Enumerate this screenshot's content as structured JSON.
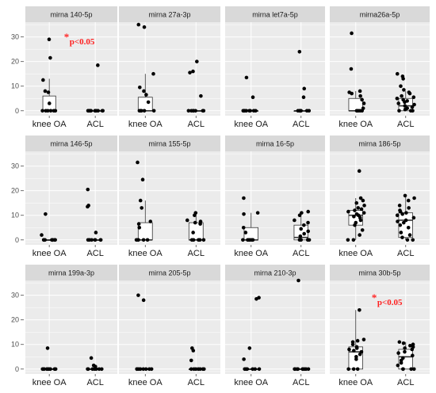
{
  "chart_data": {
    "type": "boxplot-jitter faceted",
    "groups": [
      "knee OA",
      "ACL"
    ],
    "colors": {
      "panel_bg": "#ebebeb",
      "strip_bg": "#d9d9d9",
      "grid": "#ffffff",
      "point": "#000000",
      "annotation": "#ff1f1f"
    },
    "rows": [
      {
        "ylim": [
          -2,
          36
        ],
        "yticks": [
          "0",
          "10",
          "20",
          "30"
        ]
      },
      {
        "ylim": [
          -2,
          36
        ],
        "yticks": [
          "0",
          "10",
          "20",
          "30"
        ]
      },
      {
        "ylim": [
          -2,
          36
        ],
        "yticks": [
          "0",
          "10",
          "20",
          "30"
        ]
      }
    ],
    "panels": [
      {
        "title": "mirna 140-5p",
        "row": 0,
        "col": 0,
        "box": [
          {
            "q1": 0,
            "med": 0,
            "q3": 6,
            "lo": 0,
            "hi": 13
          },
          {
            "q1": 0,
            "med": 0,
            "q3": 0,
            "lo": 0,
            "hi": 0
          }
        ],
        "points": [
          [
            29,
            21.5,
            12.5,
            8,
            7.5,
            3,
            0,
            0,
            0,
            0,
            0,
            0
          ],
          [
            18.5,
            0,
            0,
            0,
            0,
            0,
            0,
            0,
            0,
            0,
            0,
            0
          ]
        ],
        "annotation": "p<0.05",
        "annotation_star": "*",
        "annotation_y": 28
      },
      {
        "title": "mirna 27a-3p",
        "row": 0,
        "col": 1,
        "box": [
          {
            "q1": 0,
            "med": 0,
            "q3": 5.5,
            "lo": 0,
            "hi": 15
          },
          {
            "q1": 0,
            "med": 0,
            "q3": 0,
            "lo": 0,
            "hi": 0
          }
        ],
        "points": [
          [
            35,
            34,
            15,
            9.5,
            8,
            6.5,
            3.5,
            0,
            0,
            0,
            0,
            0
          ],
          [
            20,
            16,
            15.5,
            6,
            0,
            0,
            0,
            0,
            0,
            0,
            0
          ]
        ]
      },
      {
        "title": "mirna let7a-5p",
        "row": 0,
        "col": 2,
        "box": [
          {
            "q1": 0,
            "med": 0,
            "q3": 0,
            "lo": 0,
            "hi": 0
          },
          {
            "q1": 0,
            "med": 0,
            "q3": 0,
            "lo": 0,
            "hi": 0
          }
        ],
        "points": [
          [
            13.5,
            5.5,
            0,
            0,
            0,
            0,
            0,
            0,
            0,
            0
          ],
          [
            24,
            9,
            5.5,
            0,
            0,
            0,
            0,
            0,
            0,
            0,
            0
          ]
        ]
      },
      {
        "title": "mirna26a-5p",
        "row": 0,
        "col": 3,
        "box": [
          {
            "q1": 0,
            "med": 0,
            "q3": 5,
            "lo": 0,
            "hi": 8
          },
          {
            "q1": 0,
            "med": 2,
            "q3": 5,
            "lo": 0,
            "hi": 8
          }
        ],
        "points": [
          [
            31.5,
            17,
            8,
            7.5,
            7,
            6,
            4.5,
            3,
            1,
            0,
            0,
            0,
            0
          ],
          [
            15,
            14,
            13,
            10,
            8.5,
            7.5,
            7,
            6,
            5.5,
            5,
            4.5,
            4,
            3.5,
            3,
            2.5,
            2,
            1.5,
            1,
            0.5,
            0,
            0,
            0
          ]
        ]
      },
      {
        "title": "mirna 146-5p",
        "row": 1,
        "col": 0,
        "box": [
          {
            "q1": 0,
            "med": 0,
            "q3": 0,
            "lo": 0,
            "hi": 0
          },
          {
            "q1": 0,
            "med": 0,
            "q3": 0,
            "lo": 0,
            "hi": 0
          }
        ],
        "points": [
          [
            10.5,
            2,
            0,
            0,
            0,
            0,
            0,
            0,
            0,
            0
          ],
          [
            20.5,
            14,
            13.5,
            3,
            0,
            0,
            0,
            0,
            0,
            0,
            0
          ]
        ]
      },
      {
        "title": "mirna 155-5p",
        "row": 1,
        "col": 1,
        "box": [
          {
            "q1": 0,
            "med": 0,
            "q3": 7,
            "lo": 0,
            "hi": 16
          },
          {
            "q1": 0,
            "med": 0,
            "q3": 7,
            "lo": 0,
            "hi": 11
          }
        ],
        "points": [
          [
            31.5,
            24.5,
            16,
            13,
            7.5,
            6.5,
            5,
            0,
            0,
            0,
            0,
            0
          ],
          [
            11,
            10,
            8,
            7.5,
            7,
            6.5,
            3,
            0,
            0,
            0,
            0,
            0
          ]
        ]
      },
      {
        "title": "mirna 16-5p",
        "row": 1,
        "col": 2,
        "box": [
          {
            "q1": 0,
            "med": 0,
            "q3": 5,
            "lo": 0,
            "hi": 11
          },
          {
            "q1": 0,
            "med": 1,
            "q3": 6,
            "lo": 0,
            "hi": 11
          }
        ],
        "points": [
          [
            17,
            11,
            10.5,
            5,
            3,
            0,
            0,
            0,
            0,
            0,
            0
          ],
          [
            11.5,
            11,
            10,
            8,
            7,
            6,
            4.5,
            3.5,
            2.5,
            1.5,
            0,
            0,
            0,
            0
          ]
        ]
      },
      {
        "title": "mirna 186-5p",
        "row": 1,
        "col": 3,
        "box": [
          {
            "q1": 6,
            "med": 10,
            "q3": 12,
            "lo": 0,
            "hi": 17
          },
          {
            "q1": 1,
            "med": 8,
            "q3": 11,
            "lo": 0,
            "hi": 18
          }
        ],
        "points": [
          [
            28,
            17,
            16,
            15,
            14,
            13,
            12.5,
            12,
            11.5,
            11,
            10.5,
            10,
            9.5,
            9,
            8,
            7,
            6,
            4,
            2,
            0,
            0
          ],
          [
            18,
            17,
            16,
            14,
            13,
            12,
            11.5,
            11,
            10.5,
            10,
            9,
            8,
            7.5,
            7,
            6,
            5,
            3,
            2,
            1,
            0,
            0
          ]
        ]
      },
      {
        "title": "mirna 199a-3p",
        "row": 2,
        "col": 0,
        "box": [
          {
            "q1": 0,
            "med": 0,
            "q3": 0,
            "lo": 0,
            "hi": 0
          },
          {
            "q1": 0,
            "med": 0,
            "q3": 0,
            "lo": 0,
            "hi": 0
          }
        ],
        "points": [
          [
            8.5,
            0,
            0,
            0,
            0,
            0,
            0,
            0,
            0,
            0
          ],
          [
            4.5,
            1.5,
            1,
            0,
            0,
            0,
            0,
            0,
            0,
            0
          ]
        ]
      },
      {
        "title": "mirna 205-5p",
        "row": 2,
        "col": 1,
        "box": [
          {
            "q1": 0,
            "med": 0,
            "q3": 0,
            "lo": 0,
            "hi": 0
          },
          {
            "q1": 0,
            "med": 0,
            "q3": 0,
            "lo": 0,
            "hi": 0
          }
        ],
        "points": [
          [
            30,
            28,
            0,
            0,
            0,
            0,
            0,
            0,
            0,
            0
          ],
          [
            8.5,
            7.5,
            3.5,
            0,
            0,
            0,
            0,
            0,
            0,
            0
          ]
        ]
      },
      {
        "title": "mirna 210-3p",
        "row": 2,
        "col": 2,
        "box": [
          {
            "q1": 0,
            "med": 0,
            "q3": 0,
            "lo": 0,
            "hi": 0
          },
          {
            "q1": 0,
            "med": 0,
            "q3": 0,
            "lo": 0,
            "hi": 0
          }
        ],
        "points": [
          [
            29,
            28.5,
            8.5,
            4,
            0,
            0,
            0,
            0,
            0,
            0
          ],
          [
            36,
            0,
            0,
            0,
            0,
            0,
            0,
            0,
            0,
            0
          ]
        ]
      },
      {
        "title": "mirna 30b-5p",
        "row": 2,
        "col": 3,
        "box": [
          {
            "q1": 0,
            "med": 7,
            "q3": 9,
            "lo": 0,
            "hi": 24
          },
          {
            "q1": 0,
            "med": 5,
            "q3": 8,
            "lo": 0,
            "hi": 11
          }
        ],
        "points": [
          [
            24,
            12,
            11.5,
            11,
            10,
            9,
            8.5,
            8,
            7.5,
            7,
            6,
            5,
            4,
            0,
            0,
            0
          ],
          [
            11,
            10.5,
            10,
            9.5,
            9,
            8.5,
            8,
            7,
            6.5,
            5.5,
            4.5,
            3.5,
            2.5,
            1.5,
            0,
            0,
            0,
            0
          ]
        ],
        "annotation": "p<0.05",
        "annotation_star": "*",
        "annotation_y": 27
      }
    ]
  }
}
